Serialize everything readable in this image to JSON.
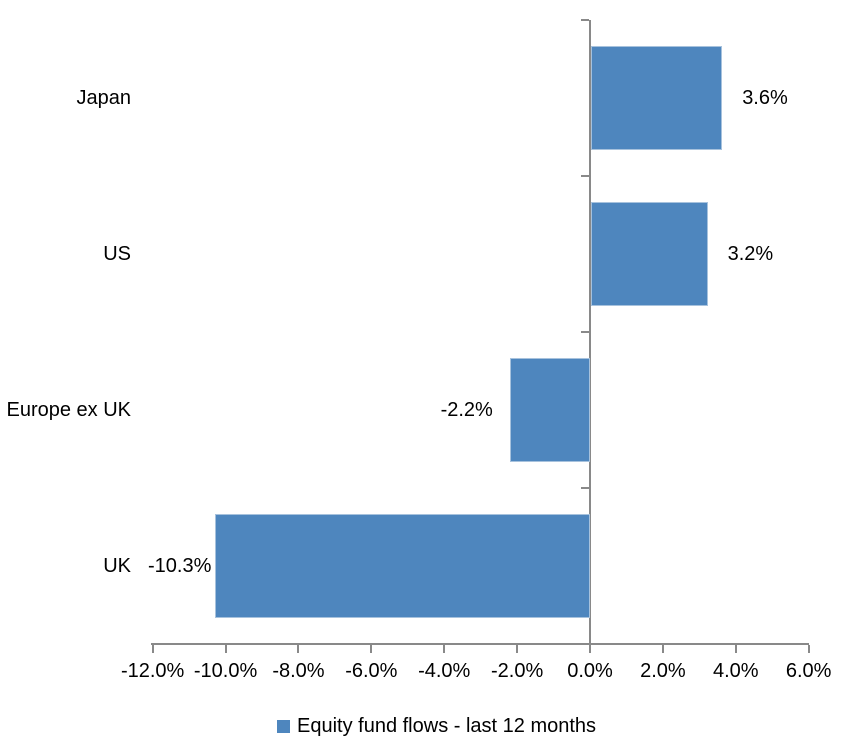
{
  "chart_data": {
    "type": "bar",
    "orientation": "horizontal",
    "categories": [
      "Japan",
      "US",
      "Europe ex UK",
      "UK"
    ],
    "series": [
      {
        "name": "Equity fund flows - last 12 months",
        "values": [
          3.6,
          3.2,
          -2.2,
          -10.3
        ],
        "value_labels": [
          "3.6%",
          "3.2%",
          "-2.2%",
          "-10.3%"
        ]
      }
    ],
    "xlim": [
      -12,
      6
    ],
    "x_tick_step": 2,
    "x_tick_labels": [
      "-12.0%",
      "-10.0%",
      "-8.0%",
      "-6.0%",
      "-4.0%",
      "-2.0%",
      "0.0%",
      "2.0%",
      "4.0%",
      "6.0%"
    ],
    "grid": false,
    "legend_position": "bottom",
    "colors": {
      "bar": "#4e86be",
      "bar_border": "#a7c2dd",
      "axis": "#898989",
      "text": "#000000"
    }
  }
}
